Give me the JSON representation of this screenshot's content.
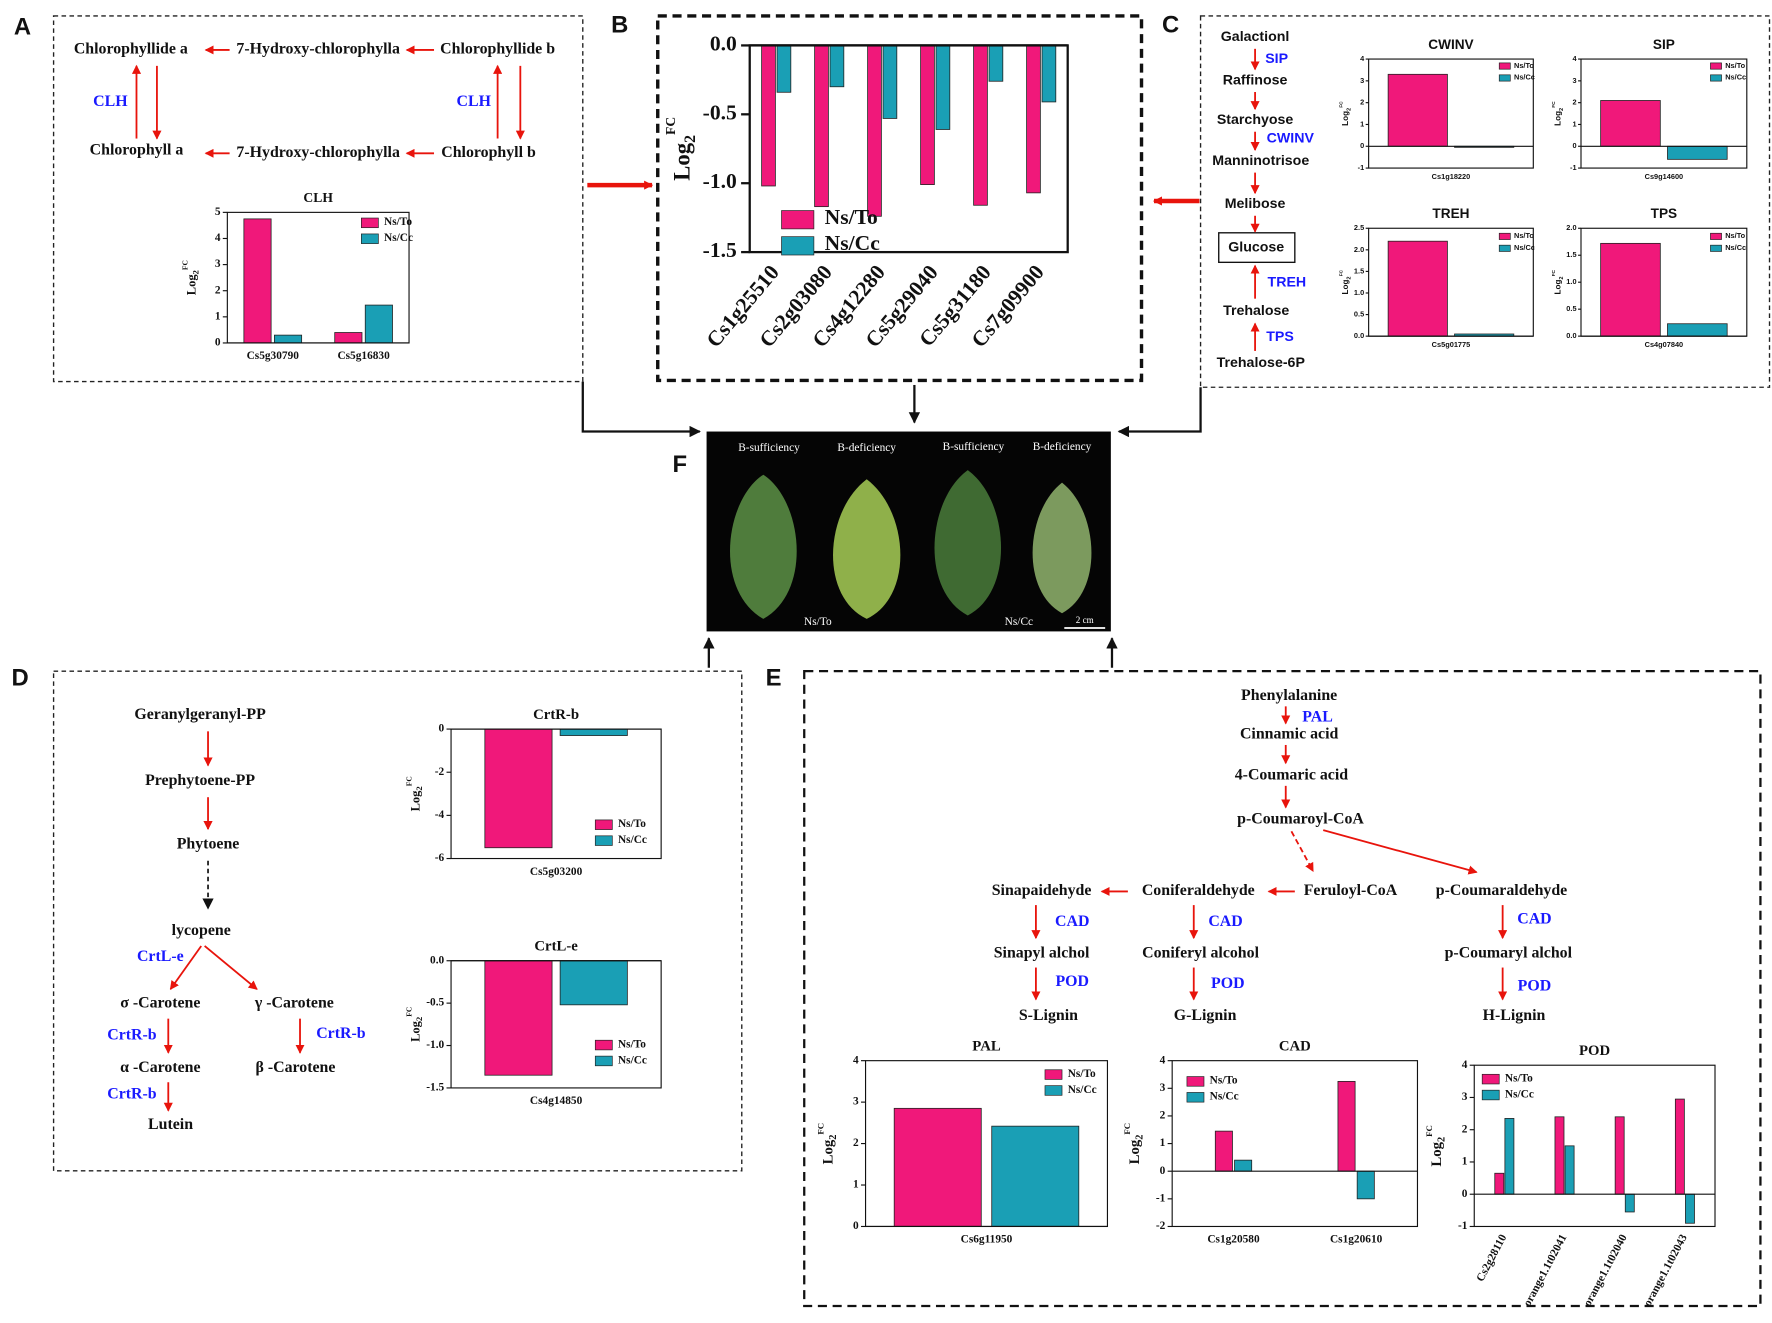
{
  "chart_data": [
    {
      "type": "bar",
      "title": "CLH",
      "y_label": [
        "Log",
        "2",
        "FC"
      ],
      "categories": [
        "Cs5g30790",
        "Cs5g16830"
      ],
      "series": [
        {
          "name": "Ns/To",
          "color": "#f0187a",
          "values": [
            4.75,
            0.4
          ]
        },
        {
          "name": "Ns/Cc",
          "color": "#1a9fb5",
          "values": [
            0.3,
            1.45
          ]
        }
      ],
      "ylim": [
        0,
        5
      ],
      "yticks": [
        0,
        1,
        2,
        3,
        4,
        5
      ]
    },
    {
      "type": "bar",
      "y_label": [
        "Log",
        "2",
        "FC"
      ],
      "categories": [
        "Cs1g25510",
        "Cs2g03080",
        "Cs4g12280",
        "Cs5g29040",
        "Cs5g31180",
        "Cs7g09900"
      ],
      "series": [
        {
          "name": "Ns/To",
          "color": "#f0187a",
          "values": [
            -1.02,
            -1.17,
            -1.24,
            -1.01,
            -1.16,
            -1.07
          ]
        },
        {
          "name": "Ns/Cc",
          "color": "#1a9fb5",
          "values": [
            -0.34,
            -0.3,
            -0.53,
            -0.61,
            -0.26,
            -0.41
          ]
        }
      ],
      "ylim": [
        -1.5,
        0
      ],
      "yticks": [
        {
          "value": 0,
          "label": "0.0"
        },
        {
          "value": -0.5,
          "label": "-0.5"
        },
        {
          "value": -1,
          "label": "-1.0"
        },
        {
          "value": -1.5,
          "label": "-1.5"
        }
      ]
    },
    {
      "type": "bar",
      "title": "CWINV",
      "y_label": [
        "Log",
        "2",
        "FC"
      ],
      "categories": [
        "Cs1g18220"
      ],
      "series": [
        {
          "name": "Ns/To",
          "color": "#f0187a",
          "values": [
            3.3
          ]
        },
        {
          "name": "Ns/Cc",
          "color": "#1a9fb5",
          "values": [
            -0.05
          ]
        }
      ],
      "ylim": [
        -1,
        4
      ],
      "yticks": [
        -1,
        0,
        1,
        2,
        3,
        4
      ]
    },
    {
      "type": "bar",
      "title": "SIP",
      "y_label": [
        "Log",
        "2",
        "FC"
      ],
      "categories": [
        "Cs9g14600"
      ],
      "series": [
        {
          "name": "Ns/To",
          "color": "#f0187a",
          "values": [
            2.1
          ]
        },
        {
          "name": "Ns/Cc",
          "color": "#1a9fb5",
          "values": [
            -0.6
          ]
        }
      ],
      "ylim": [
        -1,
        4
      ],
      "yticks": [
        -1,
        0,
        1,
        2,
        3,
        4
      ]
    },
    {
      "type": "bar",
      "title": "TREH",
      "y_label": [
        "Log",
        "2",
        "FC"
      ],
      "categories": [
        "Cs5g01775"
      ],
      "series": [
        {
          "name": "Ns/To",
          "color": "#f0187a",
          "values": [
            2.2
          ]
        },
        {
          "name": "Ns/Cc",
          "color": "#1a9fb5",
          "values": [
            0.05
          ]
        }
      ],
      "ylim": [
        0,
        2.5
      ],
      "yticks": [
        {
          "value": 0,
          "label": "0.0"
        },
        {
          "value": 0.5,
          "label": "0.5"
        },
        {
          "value": 1,
          "label": "1.0"
        },
        {
          "value": 1.5,
          "label": "1.5"
        },
        {
          "value": 2,
          "label": "2.0"
        },
        {
          "value": 2.5,
          "label": "2.5"
        }
      ]
    },
    {
      "type": "bar",
      "title": "TPS",
      "y_label": [
        "Log",
        "2",
        "FC"
      ],
      "categories": [
        "Cs4g07840"
      ],
      "series": [
        {
          "name": "Ns/To",
          "color": "#f0187a",
          "values": [
            1.72
          ]
        },
        {
          "name": "Ns/Cc",
          "color": "#1a9fb5",
          "values": [
            0.23
          ]
        }
      ],
      "ylim": [
        0,
        2
      ],
      "yticks": [
        {
          "value": 0,
          "label": "0.0"
        },
        {
          "value": 0.5,
          "label": "0.5"
        },
        {
          "value": 1,
          "label": "1.0"
        },
        {
          "value": 1.5,
          "label": "1.5"
        },
        {
          "value": 2,
          "label": "2.0"
        }
      ]
    },
    {
      "type": "bar",
      "title": "CrtR-b",
      "y_label": [
        "Log",
        "2",
        "FC"
      ],
      "categories": [
        "Cs5g03200"
      ],
      "series": [
        {
          "name": "Ns/To",
          "color": "#f0187a",
          "values": [
            -5.5
          ]
        },
        {
          "name": "Ns/Cc",
          "color": "#1a9fb5",
          "values": [
            -0.3
          ]
        }
      ],
      "ylim": [
        -6,
        0
      ],
      "yticks": [
        0,
        -2,
        -4,
        -6
      ]
    },
    {
      "type": "bar",
      "title": "CrtL-e",
      "y_label": [
        "Log",
        "2",
        "FC"
      ],
      "categories": [
        "Cs4g14850"
      ],
      "series": [
        {
          "name": "Ns/To",
          "color": "#f0187a",
          "values": [
            -1.35
          ]
        },
        {
          "name": "Ns/Cc",
          "color": "#1a9fb5",
          "values": [
            -0.52
          ]
        }
      ],
      "ylim": [
        -1.5,
        0
      ],
      "yticks": [
        {
          "value": 0,
          "label": "0.0"
        },
        {
          "value": -0.5,
          "label": "-0.5"
        },
        {
          "value": -1,
          "label": "-1.0"
        },
        {
          "value": -1.5,
          "label": "-1.5"
        }
      ]
    },
    {
      "type": "bar",
      "title": "PAL",
      "y_label": [
        "Log",
        "2",
        "FC"
      ],
      "categories": [
        "Cs6g11950"
      ],
      "series": [
        {
          "name": "Ns/To",
          "color": "#f0187a",
          "values": [
            2.85
          ]
        },
        {
          "name": "Ns/Cc",
          "color": "#1a9fb5",
          "values": [
            2.42
          ]
        }
      ],
      "ylim": [
        0,
        4
      ],
      "yticks": [
        0,
        1,
        2,
        3,
        4
      ]
    },
    {
      "type": "bar",
      "title": "CAD",
      "y_label": [
        "Log",
        "2",
        "FC"
      ],
      "categories": [
        "Cs1g20580",
        "Cs1g20610"
      ],
      "series": [
        {
          "name": "Ns/To",
          "color": "#f0187a",
          "values": [
            1.45,
            3.25
          ]
        },
        {
          "name": "Ns/Cc",
          "color": "#1a9fb5",
          "values": [
            0.4,
            -1.0
          ]
        }
      ],
      "ylim": [
        -2,
        4
      ],
      "yticks": [
        -2,
        -1,
        0,
        1,
        2,
        3,
        4
      ]
    },
    {
      "type": "bar",
      "title": "POD",
      "y_label": [
        "Log",
        "2",
        "FC"
      ],
      "categories": [
        "Cs2g28110",
        "orange1.1t02041",
        "orange1.1t02040",
        "orange1.1t02043"
      ],
      "series": [
        {
          "name": "Ns/To",
          "color": "#f0187a",
          "values": [
            0.65,
            2.4,
            2.4,
            2.95
          ]
        },
        {
          "name": "Ns/Cc",
          "color": "#1a9fb5",
          "values": [
            2.35,
            1.5,
            -0.55,
            -0.9
          ]
        }
      ],
      "ylim": [
        -1,
        4
      ],
      "yticks": [
        -1,
        0,
        1,
        2,
        3,
        4
      ]
    }
  ],
  "diagram": {
    "panel_labels": [
      "A",
      "B",
      "C",
      "D",
      "E",
      "F"
    ],
    "a": {
      "nodes": [
        "Chlorophyllide a",
        "7-Hydroxy-chlorophylla",
        "Chlorophyllide b",
        "Chlorophyll a",
        "7-Hydroxy-chlorophylla",
        "Chlorophyll b"
      ],
      "enzymes": [
        "CLH",
        "CLH"
      ]
    },
    "c": {
      "nodes": [
        "Galactionl",
        "Raffinose",
        "Starchyose",
        "Manninotrisoe",
        "Melibose",
        "Glucose",
        "Trehalose",
        "Trehalose-6P"
      ],
      "enzymes": [
        "SIP",
        "CWINV",
        "TREH",
        "TPS"
      ]
    },
    "d": {
      "nodes": [
        "Geranylgeranyl-PP",
        "Prephytoene-PP",
        "Phytoene",
        "lycopene",
        "σ -Carotene",
        "γ -Carotene",
        "α -Carotene",
        "β -Carotene",
        "Lutein"
      ],
      "enzymes": [
        "CrtL-e",
        "CrtR-b",
        "CrtR-b",
        "CrtR-b"
      ]
    },
    "e": {
      "nodes": [
        "Phenylalanine",
        "Cinnamic acid",
        "4-Coumaric acid",
        "p-Coumaroyl-CoA",
        "Sinapaidehyde",
        "Coniferaldehyde",
        "Feruloyl-CoA",
        "p-Coumaraldehyde",
        "Sinapyl alchol",
        "Coniferyl alcohol",
        "p-Coumaryl alchol",
        "S-Lignin",
        "G-Lignin",
        "H-Lignin"
      ],
      "enzymes": [
        "PAL",
        "CAD",
        "CAD",
        "CAD",
        "POD",
        "POD",
        "POD"
      ]
    },
    "f": {
      "labels": [
        "B-sufficiency",
        "B-deficiency",
        "B-sufficiency",
        "B-deficiency",
        "Ns/To",
        "Ns/Cc",
        "2 cm"
      ]
    }
  }
}
